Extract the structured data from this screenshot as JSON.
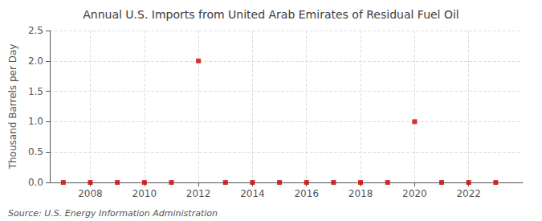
{
  "chart_data": {
    "type": "scatter",
    "title": "Annual U.S. Imports from United Arab Emirates of Residual Fuel Oil",
    "ylabel": "Thousand Barrels per Day",
    "source": "Source: U.S. Energy Information Administration",
    "x": [
      2007,
      2008,
      2009,
      2010,
      2011,
      2012,
      2013,
      2014,
      2015,
      2016,
      2017,
      2018,
      2019,
      2020,
      2021,
      2022,
      2023
    ],
    "values": [
      0.0,
      0.0,
      0.0,
      0.0,
      0.0,
      2.0,
      0.0,
      0.0,
      0.0,
      0.0,
      0.0,
      0.0,
      0.0,
      1.0,
      0.0,
      0.0,
      0.0
    ],
    "color": "#cc0000",
    "marker": "square",
    "xlim": [
      2006.5,
      2024.0
    ],
    "xticks": [
      2008,
      2010,
      2012,
      2014,
      2016,
      2018,
      2020,
      2022
    ],
    "ylim": [
      0.0,
      2.5
    ],
    "yticks": [
      {
        "value": 0.0,
        "label": "0.0"
      },
      0.5,
      {
        "value": 1.0,
        "label": "1.0"
      },
      1.5,
      {
        "value": 2.0,
        "label": "2.0"
      },
      2.5
    ],
    "grid": true
  }
}
